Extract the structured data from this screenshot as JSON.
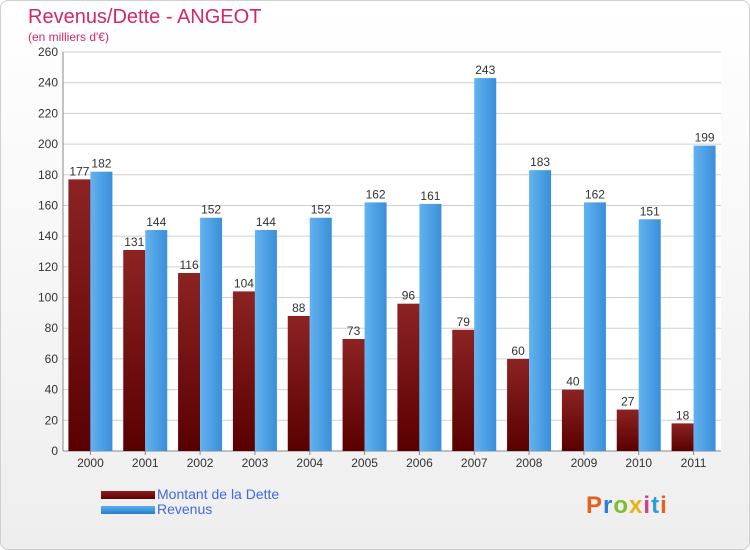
{
  "header": {
    "title": "Revenus/Dette - ANGEOT",
    "subtitle": "(en milliers d'€)"
  },
  "legend": {
    "dette_label": "Montant de la Dette",
    "revenus_label": "Revenus"
  },
  "logo": {
    "text": "Proxiti",
    "colors": [
      "#e8611a",
      "#2e7dd1",
      "#7bbf2a",
      "#e8b21a",
      "#d63c8c",
      "#2e9fd1",
      "#e8611a"
    ]
  },
  "colors": {
    "title": "#d2276e",
    "dette": "#7a1414",
    "revenus": "#4ea3e8",
    "legend_text": "#4169e1"
  },
  "chart_data": {
    "type": "bar",
    "title": "Revenus/Dette - ANGEOT",
    "subtitle": "(en milliers d'€)",
    "categories": [
      "2000",
      "2001",
      "2002",
      "2003",
      "2004",
      "2005",
      "2006",
      "2007",
      "2008",
      "2009",
      "2010",
      "2011"
    ],
    "series": [
      {
        "name": "Montant de la Dette",
        "values": [
          177,
          131,
          116,
          104,
          88,
          73,
          96,
          79,
          60,
          40,
          27,
          18
        ]
      },
      {
        "name": "Revenus",
        "values": [
          182,
          144,
          152,
          144,
          152,
          162,
          161,
          243,
          183,
          162,
          151,
          199
        ]
      }
    ],
    "ylim": [
      0,
      260
    ],
    "yticks": [
      0,
      20,
      40,
      60,
      80,
      100,
      120,
      140,
      160,
      180,
      200,
      220,
      240,
      260
    ],
    "grid": true,
    "legend_position": "bottom-left"
  }
}
